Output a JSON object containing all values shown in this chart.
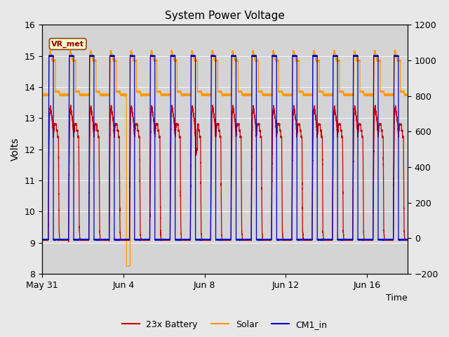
{
  "title": "System Power Voltage",
  "xlabel": "Time",
  "ylabel": "Volts",
  "xlim_start": 0,
  "xlim_end": 18,
  "ylim_left": [
    8.0,
    16.0
  ],
  "ylim_right": [
    -200,
    1200
  ],
  "yticks_left": [
    8.0,
    9.0,
    10.0,
    11.0,
    12.0,
    13.0,
    14.0,
    15.0,
    16.0
  ],
  "yticks_right": [
    -200,
    0,
    200,
    400,
    600,
    800,
    1000,
    1200
  ],
  "xtick_labels": [
    "May 31",
    "Jun 4",
    "Jun 8",
    "Jun 12",
    "Jun 16"
  ],
  "xtick_positions": [
    0,
    4,
    8,
    12,
    16
  ],
  "fig_bg_color": "#e8e8e8",
  "plot_bg_color": "#d4d4d4",
  "battery_color": "#cc0000",
  "solar_color": "#ff9900",
  "cm1_color": "#0000cc",
  "vr_met_label": "VR_met",
  "vr_met_bg": "#ffffcc",
  "vr_met_edge": "#8B4513",
  "legend_labels": [
    "23x Battery",
    "Solar",
    "CM1_in"
  ],
  "title_fontsize": 11,
  "axis_fontsize": 9,
  "ylabel_fontsize": 10
}
